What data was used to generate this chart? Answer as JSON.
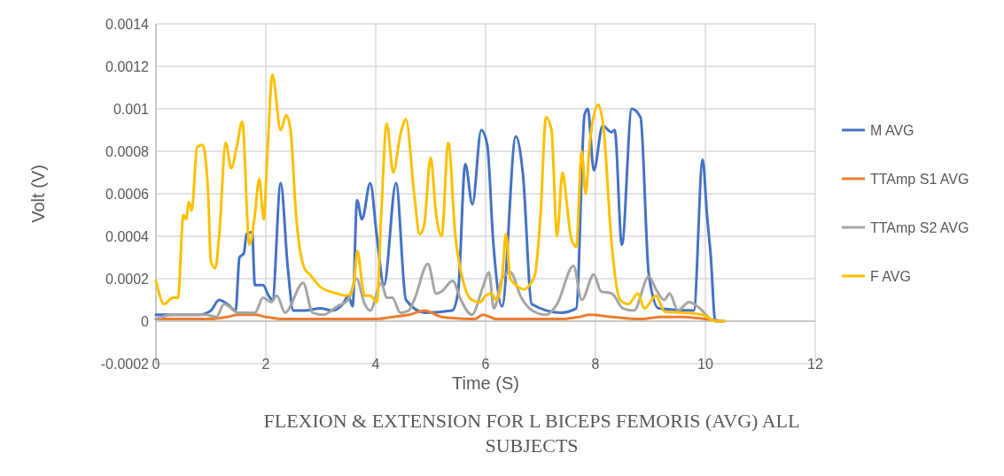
{
  "chart_data": {
    "type": "line",
    "title": "FLEXION & EXTENSION FOR L BICEPS FEMORIS (AVG) ALL SUBJECTS",
    "xlabel": "Time (S)",
    "ylabel": "Volt (V)",
    "xlim": [
      0,
      12
    ],
    "xticks": [
      0,
      2,
      4,
      6,
      8,
      10,
      12
    ],
    "ylim": [
      -0.0002,
      0.0014
    ],
    "yticks": [
      -0.0002,
      0,
      0.0002,
      0.0004,
      0.0006,
      0.0008,
      0.001,
      0.0012,
      0.0014
    ],
    "grid": true,
    "legend": "right",
    "marker": "none",
    "line_style": "solid",
    "series": [
      {
        "name": "M AVG",
        "color": "#4472c4",
        "x": [
          0,
          0.5,
          0.8,
          1.0,
          1.15,
          1.3,
          1.45,
          1.52,
          1.6,
          1.65,
          1.75,
          1.8,
          1.95,
          2.05,
          2.12,
          2.27,
          2.4,
          2.5,
          2.7,
          3.0,
          3.2,
          3.4,
          3.5,
          3.58,
          3.66,
          3.75,
          3.9,
          4.02,
          4.15,
          4.37,
          4.55,
          4.9,
          5.39,
          5.5,
          5.63,
          5.76,
          5.92,
          6.03,
          6.14,
          6.3,
          6.55,
          6.68,
          6.84,
          7.37,
          7.65,
          7.8,
          7.86,
          7.97,
          8.13,
          8.29,
          8.35,
          8.48,
          8.66,
          8.82,
          8.97,
          9.15,
          9.79,
          9.95,
          10.03,
          10.1,
          10.18,
          10.35
        ],
        "values": [
          3e-05,
          3e-05,
          3e-05,
          5e-05,
          0.0001,
          8e-05,
          5e-05,
          0.0003,
          0.00032,
          0.00041,
          0.00042,
          0.00017,
          0.00017,
          0.00012,
          0.0001,
          0.00065,
          0.00025,
          5e-05,
          5e-05,
          6e-05,
          5e-05,
          8e-05,
          0.00012,
          7e-05,
          0.00057,
          0.00048,
          0.00065,
          0.0004,
          0.00017,
          0.00065,
          0.0001,
          4e-05,
          5e-05,
          0.00014,
          0.00074,
          0.00055,
          0.0009,
          0.00083,
          0.00037,
          7e-05,
          0.00087,
          0.00069,
          8e-05,
          4e-05,
          6e-05,
          0.00097,
          0.001,
          0.00071,
          0.00092,
          0.00089,
          0.0009,
          0.00036,
          0.001,
          0.00096,
          0.00022,
          6e-05,
          5e-05,
          0.00076,
          0.0005,
          0.0003,
          0,
          0
        ]
      },
      {
        "name": "TTAmp S1 AVG",
        "color": "#ed7d31",
        "x": [
          0,
          1.0,
          1.3,
          1.5,
          1.8,
          2.0,
          2.3,
          3.0,
          3.5,
          4.0,
          4.3,
          4.6,
          4.9,
          5.2,
          5.8,
          5.95,
          6.2,
          6.8,
          7.4,
          7.7,
          7.9,
          8.3,
          8.8,
          9.2,
          9.6,
          10.0,
          10.3
        ],
        "values": [
          1e-05,
          1e-05,
          2e-05,
          3e-05,
          3e-05,
          2e-05,
          1e-05,
          1e-05,
          1e-05,
          1e-05,
          2e-05,
          3e-05,
          5e-05,
          2e-05,
          1e-05,
          3e-05,
          1e-05,
          1e-05,
          1e-05,
          2e-05,
          3e-05,
          2e-05,
          1e-05,
          2e-05,
          2e-05,
          1e-05,
          0
        ]
      },
      {
        "name": "TTAmp S2 AVG",
        "color": "#a5a5a5",
        "x": [
          0,
          0.3,
          0.55,
          0.7,
          0.9,
          1.1,
          1.24,
          1.5,
          1.8,
          1.95,
          2.1,
          2.2,
          2.35,
          2.68,
          2.85,
          3.05,
          3.3,
          3.5,
          3.65,
          3.8,
          3.9,
          4.1,
          4.2,
          4.3,
          4.45,
          4.6,
          4.7,
          4.95,
          5.1,
          5.2,
          5.4,
          5.55,
          5.75,
          5.95,
          6.06,
          6.15,
          6.3,
          6.45,
          6.65,
          6.85,
          7.1,
          7.3,
          7.6,
          7.75,
          7.97,
          8.1,
          8.3,
          8.5,
          8.7,
          8.97,
          9.1,
          9.25,
          9.35,
          9.5,
          9.7,
          9.9,
          10.1,
          10.3
        ],
        "values": [
          1e-05,
          3e-05,
          3e-05,
          3e-05,
          3e-05,
          2e-05,
          8e-05,
          4e-05,
          4e-05,
          0.00011,
          9e-05,
          0.00012,
          4e-05,
          0.00018,
          4e-05,
          3e-05,
          7e-05,
          0.0001,
          0.0002,
          8e-05,
          5e-05,
          0.00018,
          0.00011,
          0.00011,
          4e-05,
          5e-05,
          0.0001,
          0.00027,
          0.00013,
          0.00014,
          0.00019,
          0.0001,
          3e-05,
          0.00016,
          0.00023,
          6e-05,
          0.0002,
          0.00023,
          0.00011,
          5e-05,
          3e-05,
          8e-05,
          0.00026,
          0.0001,
          0.00022,
          0.00014,
          0.00013,
          6e-05,
          5e-05,
          0.00021,
          0.00015,
          0.0001,
          0.00013,
          5e-05,
          9e-05,
          6e-05,
          1e-05,
          0
        ]
      },
      {
        "name": "F AVG",
        "color": "#ffc000",
        "x": [
          0,
          0.15,
          0.3,
          0.4,
          0.5,
          0.55,
          0.6,
          0.65,
          0.75,
          0.85,
          0.95,
          1.0,
          1.08,
          1.15,
          1.27,
          1.37,
          1.47,
          1.57,
          1.7,
          1.8,
          1.88,
          1.96,
          2.03,
          2.12,
          2.27,
          2.37,
          2.45,
          2.55,
          2.7,
          2.8,
          3.0,
          3.3,
          3.45,
          3.55,
          3.6,
          3.67,
          3.75,
          3.8,
          3.9,
          4.02,
          4.1,
          4.2,
          4.32,
          4.45,
          4.55,
          4.7,
          4.8,
          4.88,
          5.0,
          5.1,
          5.2,
          5.32,
          5.45,
          5.6,
          5.75,
          5.9,
          6.0,
          6.1,
          6.2,
          6.3,
          6.37,
          6.45,
          6.55,
          6.7,
          6.8,
          6.9,
          7.0,
          7.1,
          7.2,
          7.3,
          7.4,
          7.48,
          7.55,
          7.65,
          7.75,
          7.82,
          7.9,
          8.05,
          8.15,
          8.29,
          8.45,
          8.6,
          8.77,
          8.89,
          9.1,
          9.26,
          9.6,
          9.95,
          10.18,
          10.35
        ],
        "values": [
          0.00019,
          8e-05,
          0.00011,
          0.00011,
          0.0005,
          0.00048,
          0.00056,
          0.00052,
          0.00082,
          0.00083,
          0.0006,
          0.00028,
          0.00025,
          0.0004,
          0.00084,
          0.00072,
          0.00082,
          0.00094,
          0.00036,
          0.0005,
          0.00067,
          0.00048,
          0.0008,
          0.00116,
          0.0009,
          0.00097,
          0.0009,
          0.0005,
          0.00025,
          0.00022,
          0.00016,
          0.00013,
          0.00012,
          0.00013,
          0.00018,
          0.00033,
          0.00018,
          0.00012,
          0.00012,
          9e-05,
          0.0005,
          0.00093,
          0.0007,
          0.00088,
          0.00095,
          0.0006,
          0.00041,
          0.00045,
          0.00077,
          0.0005,
          0.0004,
          0.00084,
          0.0004,
          0.00018,
          0.0001,
          9e-05,
          0.00012,
          0.00013,
          0.0001,
          0.0002,
          0.00041,
          0.0002,
          0.00017,
          0.00015,
          0.00017,
          0.00022,
          0.0005,
          0.00096,
          0.0009,
          0.0004,
          0.0007,
          0.00055,
          0.0004,
          0.00035,
          0.0008,
          0.0006,
          0.00085,
          0.00102,
          0.0009,
          0.000375,
          0.0001,
          8e-05,
          0.00013,
          6e-05,
          0.00012,
          4.5e-05,
          4e-05,
          3e-05,
          0,
          0
        ]
      }
    ]
  }
}
